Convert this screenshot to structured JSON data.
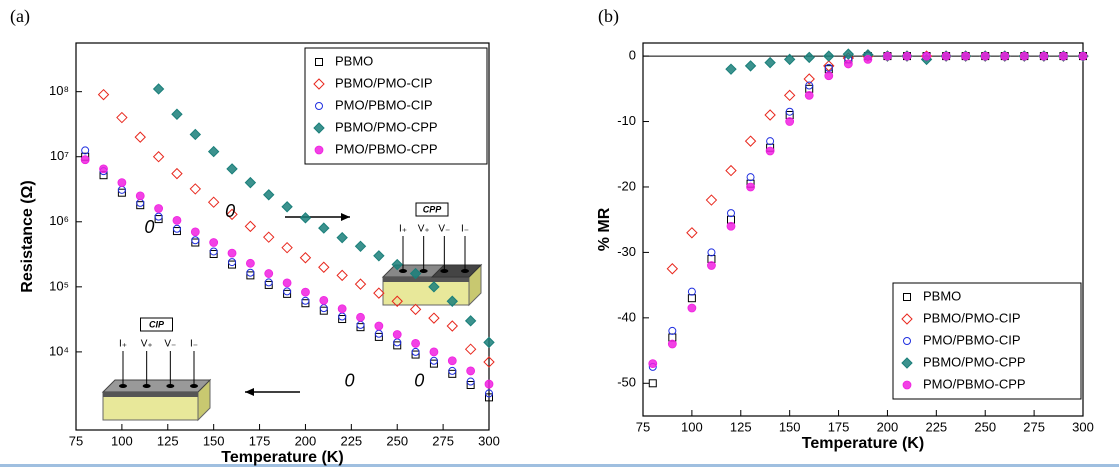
{
  "chart_data": [
    {
      "type": "scatter",
      "panel_label": "(a)",
      "x_label": "Temperature (K)",
      "y_label": "Resistance (Ω)",
      "xlim": [
        75,
        300
      ],
      "xticks": [
        75,
        100,
        125,
        150,
        175,
        200,
        225,
        250,
        275,
        300
      ],
      "ylim": [
        630,
        560000000
      ],
      "yscale": "log",
      "yticks": [
        {
          "value": 10000,
          "label": "10⁴"
        },
        {
          "value": 100000,
          "label": "10⁵"
        },
        {
          "value": 1000000,
          "label": "10⁶"
        },
        {
          "value": 10000000,
          "label": "10⁷"
        },
        {
          "value": 100000000,
          "label": "10⁸"
        }
      ],
      "legend": "upper right",
      "x": [
        80,
        90,
        100,
        110,
        120,
        130,
        140,
        150,
        160,
        170,
        180,
        190,
        200,
        210,
        220,
        230,
        240,
        250,
        260,
        270,
        280,
        290,
        300
      ],
      "series": [
        {
          "name": "PBMO",
          "color": "#000000",
          "marker": "square",
          "values": [
            10000000,
            5200000,
            2800000,
            1800000,
            1100000,
            720000,
            480000,
            320000,
            220000,
            150000,
            107000,
            78000,
            56000,
            43000,
            32000,
            24000,
            17000,
            12600,
            9100,
            6600,
            4600,
            3100,
            2000
          ]
        },
        {
          "name": "PBMO/PMO-CIP",
          "color": "#e8281e",
          "marker": "diamond",
          "values": [
            null,
            90000000,
            40000000,
            20000000,
            10000000,
            5500000,
            3200000,
            2000000,
            1300000,
            850000,
            580000,
            400000,
            280000,
            200000,
            150000,
            110000,
            80000,
            60000,
            45000,
            33000,
            25000,
            11000,
            7000
          ]
        },
        {
          "name": "PMO/PBMO-CIP",
          "color": "#1f2ee0",
          "marker": "circle",
          "values": [
            12500000,
            6000000,
            3100000,
            1950000,
            1200000,
            780000,
            520000,
            350000,
            240000,
            165000,
            117000,
            85000,
            61000,
            47000,
            35000,
            26000,
            19000,
            14000,
            10000,
            7300,
            5100,
            3500,
            2300
          ]
        },
        {
          "name": "PBMO/PMO-CPP",
          "color": "#1a7f7a",
          "marker": "diamond-filled",
          "values": [
            null,
            null,
            null,
            null,
            110000000,
            45000000,
            22000000,
            12000000,
            6500000,
            4000000,
            2600000,
            1700000,
            1150000,
            800000,
            570000,
            420000,
            300000,
            220000,
            160000,
            100000,
            60000,
            30000,
            14000
          ]
        },
        {
          "name": "PMO/PBMO-CPP",
          "color": "#f020e0",
          "marker": "circle-filled",
          "values": [
            9000000,
            6500000,
            4000000,
            2500000,
            1600000,
            1050000,
            700000,
            480000,
            330000,
            230000,
            160000,
            115000,
            83000,
            62000,
            46000,
            34000,
            25000,
            18500,
            13500,
            10000,
            7300,
            5100,
            3200
          ]
        }
      ],
      "annotations": [
        {
          "text": "0",
          "x": 115,
          "y": 800000
        },
        {
          "text": "0",
          "x": 159,
          "y": 1400000
        },
        {
          "text": "0",
          "x": 224,
          "y": 3500
        },
        {
          "text": "0",
          "x": 262,
          "y": 3500
        }
      ],
      "insets": [
        {
          "title": "CPP",
          "terminals": [
            "I₊",
            "V₊",
            "V₋",
            "I₋"
          ]
        },
        {
          "title": "CIP",
          "terminals": [
            "I₊",
            "V₊",
            "V₋",
            "I₋"
          ]
        }
      ]
    },
    {
      "type": "scatter",
      "panel_label": "(b)",
      "x_label": "Temperature (K)",
      "y_label": "% MR",
      "xlim": [
        75,
        300
      ],
      "xticks": [
        75,
        100,
        125,
        150,
        175,
        200,
        225,
        250,
        275,
        300
      ],
      "ylim": [
        -55,
        2
      ],
      "yticks": [
        -50,
        -40,
        -30,
        -20,
        -10,
        0
      ],
      "reference_line": 0,
      "legend": "lower right",
      "x": [
        80,
        90,
        100,
        110,
        120,
        130,
        140,
        150,
        160,
        170,
        180,
        190,
        200,
        210,
        220,
        230,
        240,
        250,
        260,
        270,
        280,
        290,
        300
      ],
      "series": [
        {
          "name": "PBMO",
          "color": "#000000",
          "marker": "square",
          "values": [
            -50,
            -43,
            -37,
            -31,
            -25,
            -19.5,
            -14,
            -9,
            -5,
            -2,
            -0.5,
            0,
            0,
            0,
            0,
            0,
            0,
            0,
            0,
            0,
            0,
            0,
            0
          ]
        },
        {
          "name": "PBMO/PMO-CIP",
          "color": "#e8281e",
          "marker": "diamond",
          "values": [
            null,
            -32.5,
            -27,
            -22,
            -17.5,
            -13,
            -9,
            -6,
            -3.5,
            -1.5,
            -0.3,
            0,
            0,
            0,
            0,
            0,
            0,
            0,
            0,
            0,
            0,
            0,
            0
          ]
        },
        {
          "name": "PMO/PBMO-CIP",
          "color": "#1f2ee0",
          "marker": "circle",
          "values": [
            -47.5,
            -42,
            -36,
            -30,
            -24,
            -18.5,
            -13,
            -8.5,
            -4.5,
            -1.8,
            -0.5,
            0,
            0,
            0,
            0,
            0,
            0,
            0,
            0,
            0,
            0,
            0,
            0
          ]
        },
        {
          "name": "PBMO/PMO-CPP",
          "color": "#1a7f7a",
          "marker": "diamond-filled",
          "values": [
            null,
            null,
            null,
            null,
            -2,
            -1.5,
            -1,
            -0.5,
            -0.2,
            0,
            0.3,
            0.2,
            0,
            0,
            -0.5,
            0,
            0,
            0,
            0,
            0,
            0,
            0,
            0
          ]
        },
        {
          "name": "PMO/PBMO-CPP",
          "color": "#f020e0",
          "marker": "circle-filled",
          "values": [
            -47,
            -44,
            -38.5,
            -32,
            -26,
            -20,
            -14.5,
            -10,
            -6,
            -3,
            -1.2,
            -0.5,
            0,
            0,
            0,
            0,
            0,
            0,
            0,
            0,
            0,
            0,
            0
          ]
        }
      ]
    }
  ]
}
